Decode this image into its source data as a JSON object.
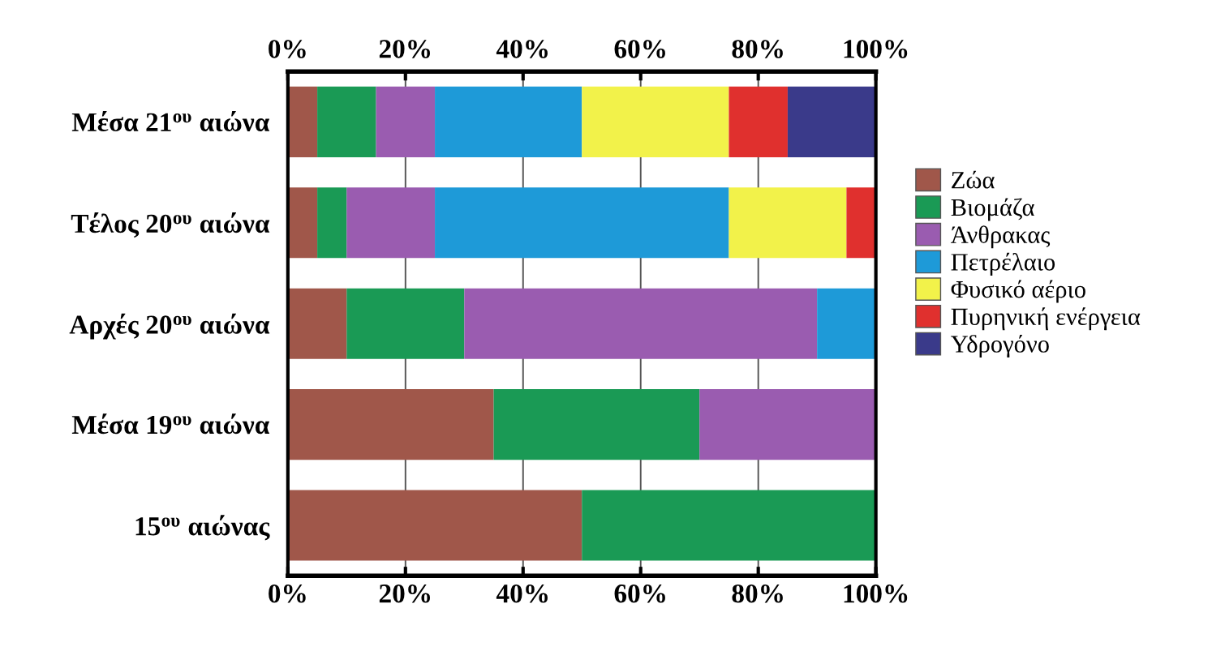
{
  "chart_data": {
    "type": "bar",
    "orientation": "horizontal",
    "stacked": true,
    "categories": [
      "Μέσα 21$^{ου}$ αιώνα",
      "Τέλος 20$^{ου}$ αιώνα",
      "Αρχές 20$^{ου}$ αιώνα",
      "Μέσα 19$^{ου}$ αιώνα",
      "15$^{ου}$ αιώνας"
    ],
    "series": [
      {
        "name": "Ζώα",
        "color": "#a0574a",
        "values": [
          5,
          5,
          10,
          35,
          50
        ]
      },
      {
        "name": "Βιομάζα",
        "color": "#1a9a55",
        "values": [
          10,
          5,
          20,
          35,
          50
        ]
      },
      {
        "name": "Άνθρακας",
        "color": "#9a5cb0",
        "values": [
          10,
          15,
          60,
          30,
          0
        ]
      },
      {
        "name": "Πετρέλαιο",
        "color": "#1e9ad8",
        "values": [
          25,
          50,
          10,
          0,
          0
        ]
      },
      {
        "name": "Φυσικό αέριο",
        "color": "#f2f24a",
        "values": [
          25,
          20,
          0,
          0,
          0
        ]
      },
      {
        "name": "Πυρηνική ενέργεια",
        "color": "#e0302e",
        "values": [
          10,
          5,
          0,
          0,
          0
        ]
      },
      {
        "name": "Υδρογόνο",
        "color": "#3a3a8a",
        "values": [
          15,
          0,
          0,
          0,
          0
        ]
      }
    ],
    "xlim": [
      0,
      100
    ],
    "xticks": [
      {
        "value": 0,
        "label": "0%"
      },
      {
        "value": 20,
        "label": "20%"
      },
      {
        "value": 40,
        "label": "40%"
      },
      {
        "value": 60,
        "label": "60%"
      },
      {
        "value": 80,
        "label": "80%"
      },
      {
        "value": 100,
        "label": "100%"
      }
    ],
    "x2lim": [
      0,
      100
    ],
    "x2ticks": [
      {
        "value": 0,
        "label": "0%"
      },
      {
        "value": 20,
        "label": "20%"
      },
      {
        "value": 40,
        "label": "40%"
      },
      {
        "value": 60,
        "label": "60%"
      },
      {
        "value": 80,
        "label": "80%"
      },
      {
        "value": 100,
        "label": "100%"
      }
    ],
    "grid": "x",
    "legend": "right"
  }
}
